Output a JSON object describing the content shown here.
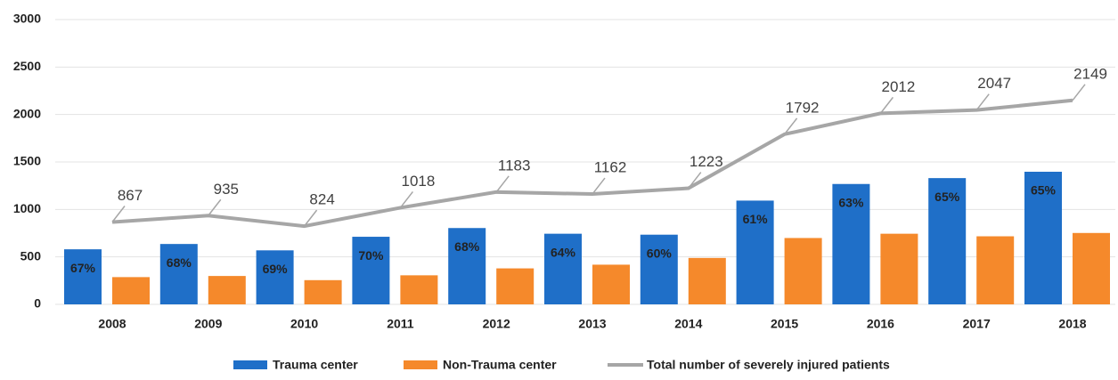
{
  "chart_data": {
    "type": "bar",
    "categories": [
      "2008",
      "2009",
      "2010",
      "2011",
      "2012",
      "2013",
      "2014",
      "2015",
      "2016",
      "2017",
      "2018"
    ],
    "series": [
      {
        "name": "Trauma center",
        "color": "#1f6fc8",
        "values": [
          580,
          636,
          569,
          712,
          804,
          744,
          734,
          1093,
          1268,
          1330,
          1397
        ],
        "share_labels": [
          "67%",
          "68%",
          "69%",
          "70%",
          "68%",
          "64%",
          "60%",
          "61%",
          "63%",
          "65%",
          "65%"
        ]
      },
      {
        "name": "Non-Trauma center",
        "color": "#f5892b",
        "values": [
          287,
          299,
          255,
          306,
          379,
          418,
          489,
          699,
          744,
          717,
          752
        ]
      },
      {
        "name": "Total number of severely injured patients",
        "type": "line",
        "color": "#a6a6a6",
        "values": [
          867,
          935,
          824,
          1018,
          1183,
          1162,
          1223,
          1792,
          2012,
          2047,
          2149
        ]
      }
    ],
    "ylim": [
      0,
      3000
    ],
    "yticks": [
      0,
      500,
      1000,
      1500,
      2000,
      2500,
      3000
    ],
    "grid": true,
    "legend": "bottom"
  }
}
